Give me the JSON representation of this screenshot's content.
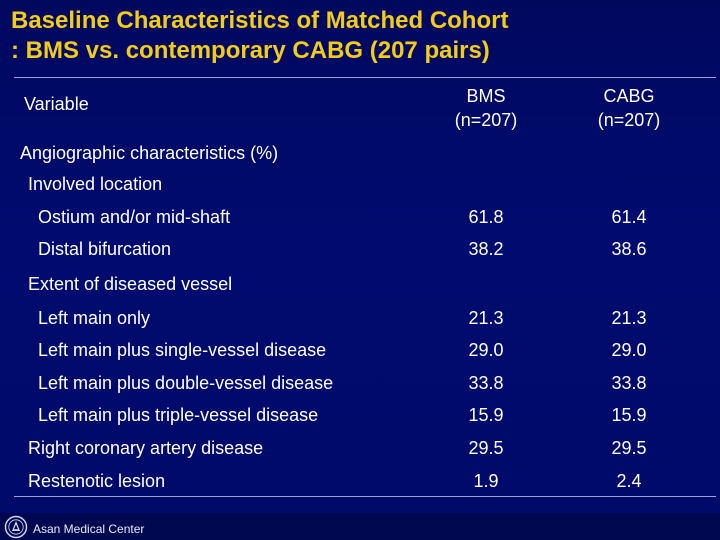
{
  "slide": {
    "title_line1": "Baseline Characteristics of Matched Cohort",
    "title_line2": ": BMS vs. contemporary CABG (207 pairs)"
  },
  "table": {
    "header": {
      "variable": "Variable",
      "bms_line1": "BMS",
      "bms_line2": "(n=207)",
      "cabg_line1": "CABG",
      "cabg_line2": "(n=207)"
    },
    "rows": [
      {
        "label": "Angiographic characteristics (%)",
        "bms": "",
        "cabg": ""
      },
      {
        "label": "Involved location",
        "bms": "",
        "cabg": ""
      },
      {
        "label": "Ostium and/or mid-shaft",
        "bms": "61.8",
        "cabg": "61.4"
      },
      {
        "label": "Distal bifurcation",
        "bms": "38.2",
        "cabg": "38.6"
      },
      {
        "label": "Extent of diseased vessel",
        "bms": "",
        "cabg": ""
      },
      {
        "label": "Left main only",
        "bms": "21.3",
        "cabg": "21.3"
      },
      {
        "label": "Left main plus single-vessel disease",
        "bms": "29.0",
        "cabg": "29.0"
      },
      {
        "label": "Left main plus double-vessel disease",
        "bms": "33.8",
        "cabg": "33.8"
      },
      {
        "label": "Left main plus triple-vessel disease",
        "bms": "15.9",
        "cabg": "15.9"
      },
      {
        "label": "Right coronary artery disease",
        "bms": "29.5",
        "cabg": "29.5"
      },
      {
        "label": "Restenotic lesion",
        "bms": "1.9",
        "cabg": "2.4"
      }
    ]
  },
  "footer": {
    "org_name": "Asan Medical Center",
    "logo_icon": "asan-medical-center-logo-icon"
  },
  "colors": {
    "background": "#000a66",
    "title": "#f2cc18",
    "text": "#ffffff",
    "rule": "#9aa3d8"
  }
}
